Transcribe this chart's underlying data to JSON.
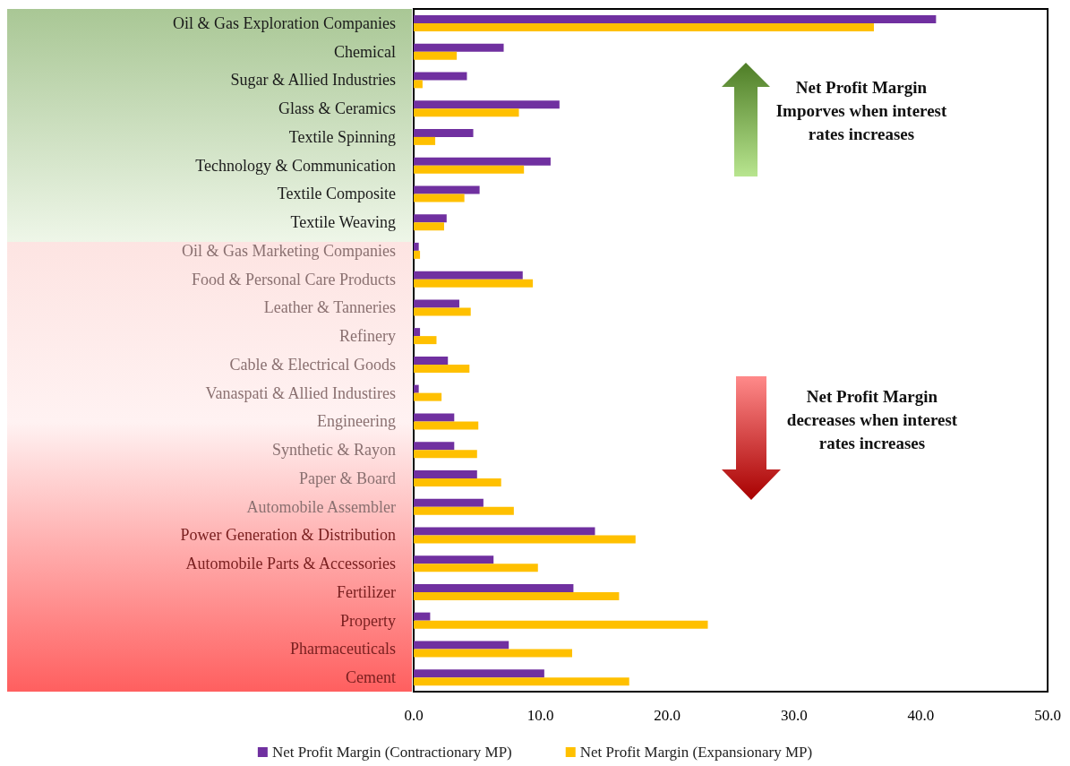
{
  "chart_data": {
    "type": "bar",
    "orientation": "horizontal",
    "categories": [
      "Oil & Gas Exploration Companies",
      "Chemical",
      "Sugar & Allied Industries",
      "Glass & Ceramics",
      "Textile Spinning",
      "Technology & Communication",
      "Textile Composite",
      "Textile Weaving",
      "Oil & Gas Marketing Companies",
      "Food & Personal Care Products",
      "Leather & Tanneries",
      "Refinery",
      "Cable & Electrical Goods",
      "Vanaspati & Allied Industires",
      "Engineering",
      "Synthetic & Rayon",
      "Paper & Board",
      "Automobile Assembler",
      "Power Generation & Distribution",
      "Automobile Parts & Accessories",
      "Fertilizer",
      "Property",
      "Pharmaceuticals",
      "Cement"
    ],
    "series": [
      {
        "name": "Net Profit Margin (Contractionary MP)",
        "color": "#7030a0",
        "values": [
          41.2,
          7.1,
          4.2,
          11.5,
          4.7,
          10.8,
          5.2,
          2.6,
          0.4,
          8.6,
          3.6,
          0.5,
          2.7,
          0.4,
          3.2,
          3.2,
          5.0,
          5.5,
          14.3,
          6.3,
          12.6,
          1.3,
          7.5,
          10.3
        ]
      },
      {
        "name": "Net Profit Margin (Expansionary MP)",
        "color": "#ffc000",
        "values": [
          36.3,
          3.4,
          0.7,
          8.3,
          1.7,
          8.7,
          4.0,
          2.4,
          0.5,
          9.4,
          4.5,
          1.8,
          4.4,
          2.2,
          5.1,
          5.0,
          6.9,
          7.9,
          17.5,
          9.8,
          16.2,
          23.2,
          12.5,
          17.0
        ]
      }
    ],
    "xlim": [
      0,
      50
    ],
    "xticks": [
      {
        "value": 0,
        "label": "0.0"
      },
      {
        "value": 10,
        "label": "10.0"
      },
      {
        "value": 20,
        "label": "20.0"
      },
      {
        "value": 30,
        "label": "30.0"
      },
      {
        "value": 40,
        "label": "40.0"
      },
      {
        "value": 50,
        "label": "50.0"
      }
    ],
    "legend": "bottom",
    "grid": false,
    "annotations": [
      "Net Profit Margin Imporves when interest rates increases",
      "Net Profit Margin decreases when interest rates increases"
    ]
  }
}
